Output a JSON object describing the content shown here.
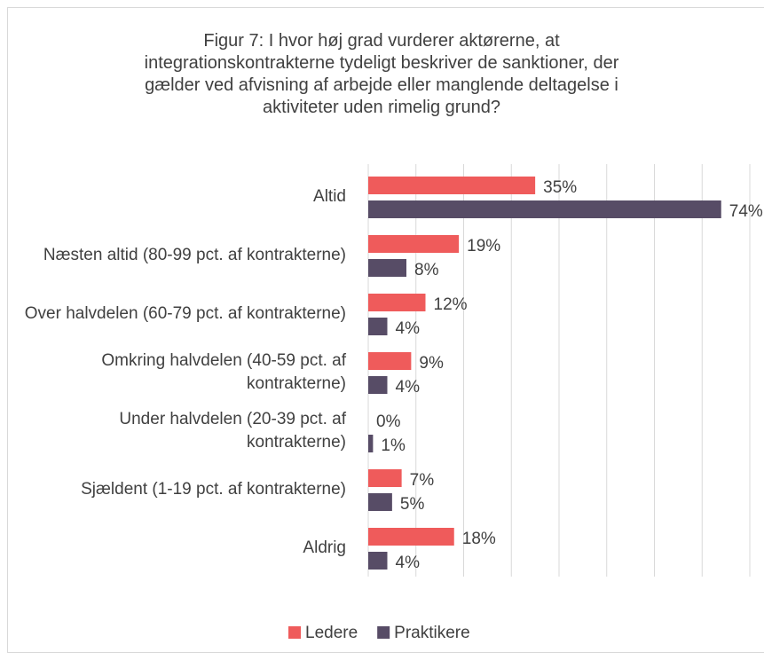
{
  "chart_data": {
    "type": "barh",
    "title": "Figur 7: I hvor høj grad vurderer aktørerne, at integrationskontrakterne tydeligt beskriver de sanktioner, der gælder ved afvisning af arbejde eller manglende deltagelse i aktiviteter uden rimelig grund?",
    "categories": [
      "Altid",
      "Næsten altid (80-99 pct. af kontrakterne)",
      "Over halvdelen (60-79 pct. af kontrakterne)",
      "Omkring halvdelen (40-59 pct. af kontrakterne)",
      "Under halvdelen (20-39 pct. af kontrakterne)",
      "Sjældent (1-19 pct. af kontrakterne)",
      "Aldrig"
    ],
    "series": [
      {
        "name": "Ledere",
        "color": "#ef5b5b",
        "values": [
          35,
          19,
          12,
          9,
          0,
          7,
          18
        ],
        "value_labels": [
          "35%",
          "19%",
          "12%",
          "9%",
          "0%",
          "7%",
          "18%"
        ]
      },
      {
        "name": "Praktikere",
        "color": "#574c66",
        "values": [
          74,
          8,
          4,
          4,
          1,
          5,
          4
        ],
        "value_labels": [
          "74%",
          "8%",
          "4%",
          "4%",
          "1%",
          "5%",
          "4%"
        ]
      }
    ],
    "xlim": [
      0,
      80
    ],
    "xticks": [
      0,
      10,
      20,
      30,
      40,
      50,
      60,
      70,
      80
    ],
    "grid": true,
    "legend": "bottom"
  }
}
